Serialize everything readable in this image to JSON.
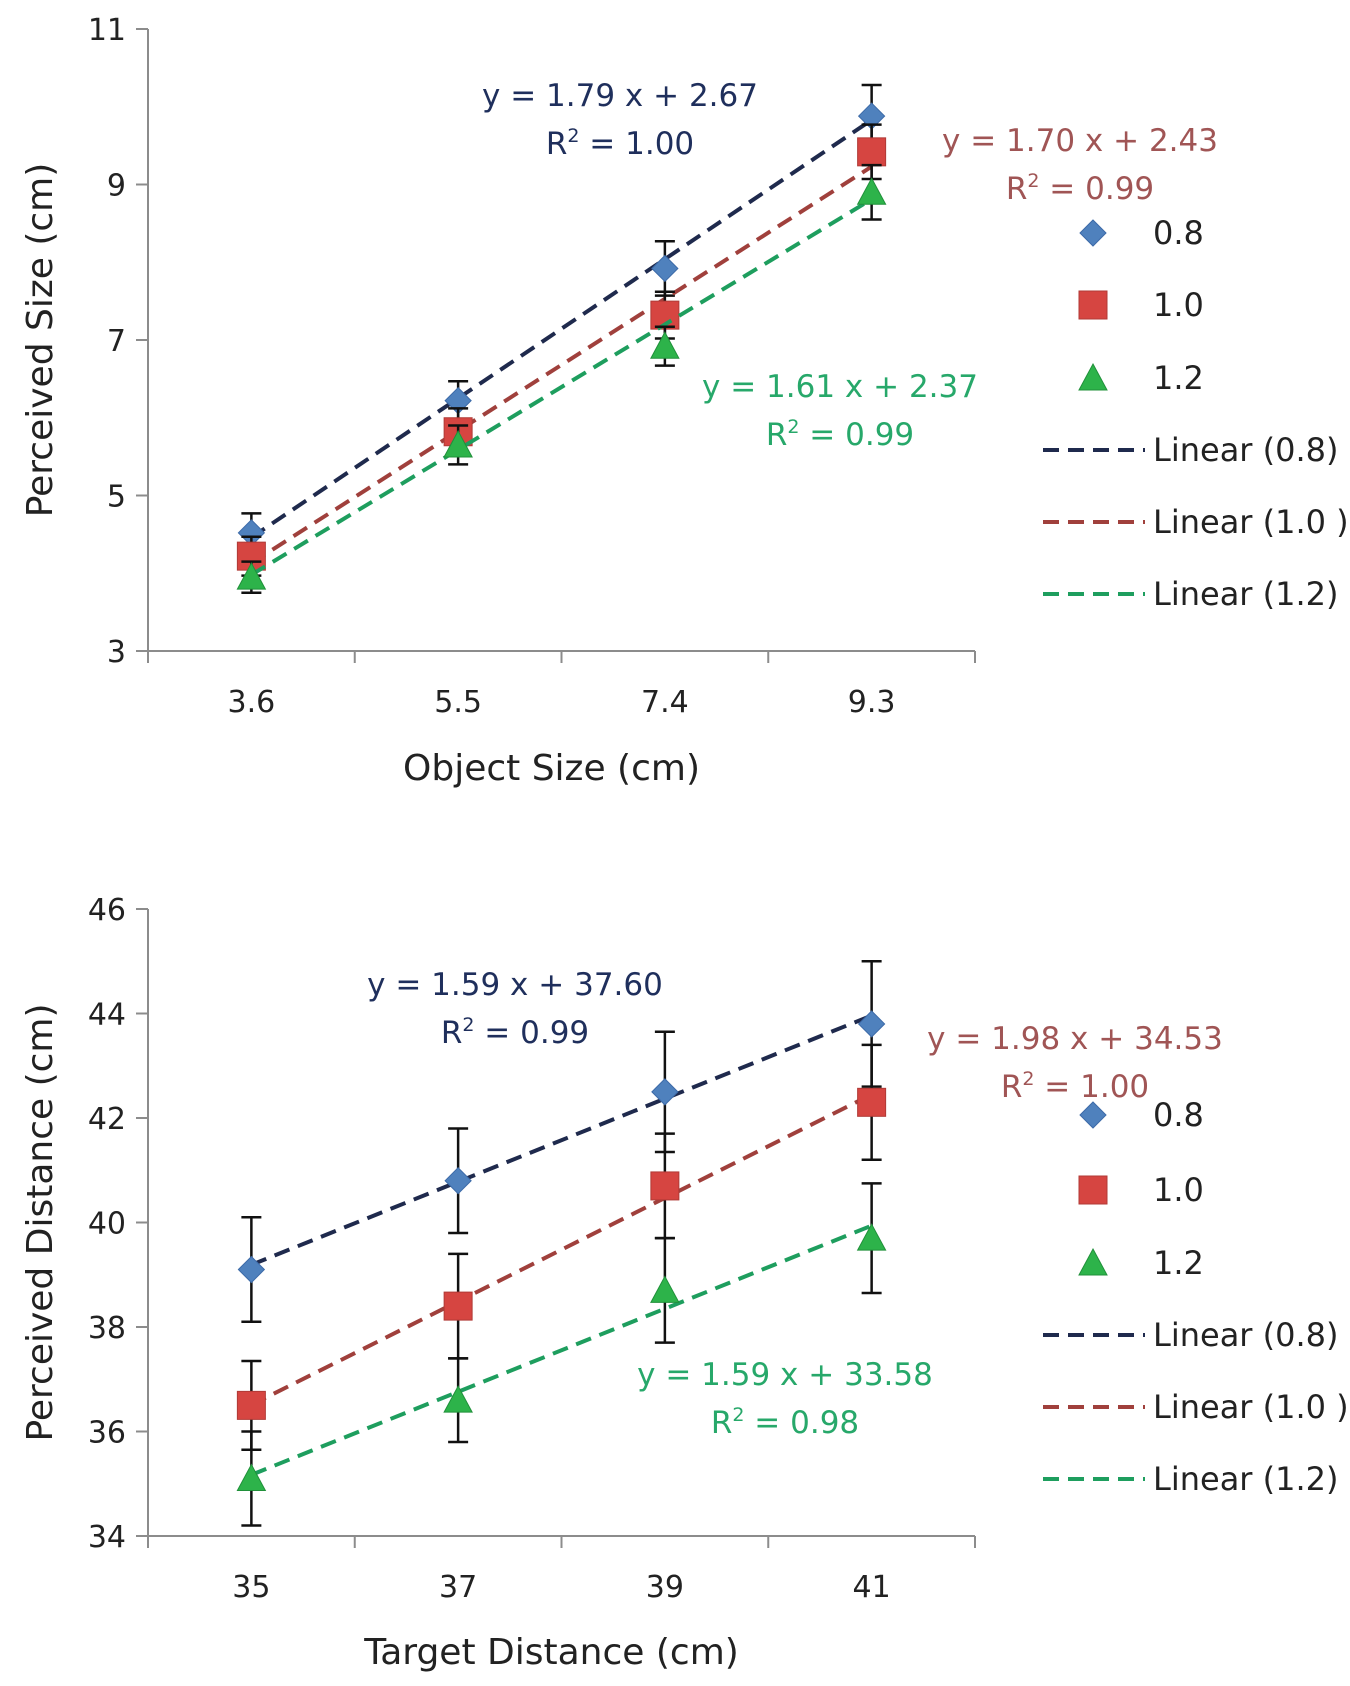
{
  "colors": {
    "s08_marker": "#4f81bd",
    "s10_marker": "#d64541",
    "s12_marker": "#2db34a",
    "s08_line": "#1f2a4d",
    "s10_line": "#a0403c",
    "s12_line": "#1e9e5e",
    "s08_text": "#1f2f5c",
    "s10_text": "#a05555",
    "s12_text": "#27a86a"
  },
  "chart_data": [
    {
      "type": "scatter",
      "title": "",
      "xlabel": "Object Size (cm)",
      "ylabel": "Perceived Size (cm)",
      "categories": [
        "3.6",
        "5.5",
        "7.4",
        "9.3"
      ],
      "x": [
        3.6,
        5.5,
        7.4,
        9.3
      ],
      "ylim": [
        3,
        11
      ],
      "yticks": [
        "3",
        "5",
        "7",
        "9",
        "11"
      ],
      "series": [
        {
          "name": "0.8",
          "marker": "diamond",
          "values": [
            4.52,
            6.22,
            7.92,
            9.88
          ],
          "errors": [
            0.25,
            0.25,
            0.35,
            0.4
          ],
          "trend_label": "Linear (0.8)",
          "trend_start": 4.46,
          "trend_end": 9.83,
          "equation": "y = 1.79 x + 2.67",
          "r2": "R² = 1.00"
        },
        {
          "name": "1.0",
          "marker": "square",
          "values": [
            4.22,
            5.82,
            7.32,
            9.42
          ],
          "errors": [
            0.25,
            0.3,
            0.3,
            0.35
          ],
          "trend_label": "Linear (1.0 )",
          "trend_start": 4.13,
          "trend_end": 9.23,
          "equation": "y = 1.70 x + 2.43",
          "r2": "R² = 0.99"
        },
        {
          "name": "1.2",
          "marker": "triangle",
          "values": [
            3.95,
            5.65,
            6.92,
            8.9
          ],
          "errors": [
            0.2,
            0.25,
            0.25,
            0.35
          ],
          "trend_label": "Linear (1.2)",
          "trend_start": 3.98,
          "trend_end": 8.81,
          "equation": "y = 1.61 x + 2.37",
          "r2": "R² = 0.99"
        }
      ]
    },
    {
      "type": "scatter",
      "title": "",
      "xlabel": "Target Distance (cm)",
      "ylabel": "Perceived Distance (cm)",
      "categories": [
        "35",
        "37",
        "39",
        "41"
      ],
      "x": [
        35,
        37,
        39,
        41
      ],
      "ylim": [
        34,
        46
      ],
      "yticks": [
        "34",
        "36",
        "38",
        "40",
        "42",
        "44",
        "46"
      ],
      "series": [
        {
          "name": "0.8",
          "marker": "diamond",
          "values": [
            39.1,
            40.8,
            42.5,
            43.8
          ],
          "errors": [
            1.0,
            1.0,
            1.15,
            1.2
          ],
          "trend_label": "Linear (0.8)",
          "trend_start": 39.19,
          "trend_end": 43.96,
          "equation": "y = 1.59 x + 37.60",
          "r2": "R² = 0.99"
        },
        {
          "name": "1.0",
          "marker": "square",
          "values": [
            36.5,
            38.4,
            40.7,
            42.3
          ],
          "errors": [
            0.85,
            1.0,
            1.0,
            1.1
          ],
          "trend_label": "Linear (1.0 )",
          "trend_start": 36.51,
          "trend_end": 42.45,
          "equation": "y = 1.98 x + 34.53",
          "r2": "R² = 1.00"
        },
        {
          "name": "1.2",
          "marker": "triangle",
          "values": [
            35.1,
            36.6,
            38.7,
            39.7
          ],
          "errors": [
            0.9,
            0.8,
            1.0,
            1.05
          ],
          "trend_label": "Linear (1.2)",
          "trend_start": 35.17,
          "trend_end": 39.94,
          "equation": "y = 1.59 x + 33.58",
          "r2": "R² = 0.98"
        }
      ]
    }
  ]
}
